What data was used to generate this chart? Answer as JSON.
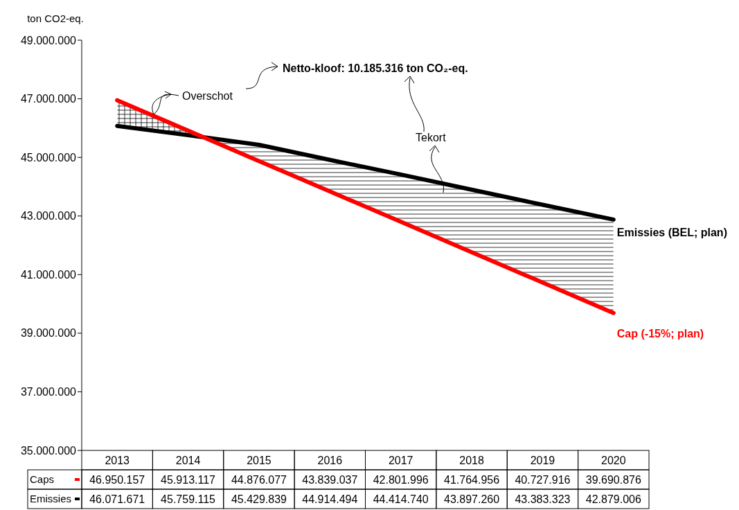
{
  "chart_data": {
    "type": "line",
    "ylabel": "ton CO2-eq.",
    "categories": [
      "2013",
      "2014",
      "2015",
      "2016",
      "2017",
      "2018",
      "2019",
      "2020"
    ],
    "series": [
      {
        "name": "Caps",
        "color": "#ff0000",
        "values": [
          46950157,
          45913117,
          44876077,
          43839037,
          42801996,
          41764956,
          40727916,
          39690876
        ],
        "value_labels": [
          "46.950.157",
          "45.913.117",
          "44.876.077",
          "43.839.037",
          "42.801.996",
          "41.764.956",
          "40.727.916",
          "39.690.876"
        ]
      },
      {
        "name": "Emissies",
        "color": "#000000",
        "values": [
          46071671,
          45759115,
          45429839,
          44914494,
          44414740,
          43897260,
          43383323,
          42879006
        ],
        "value_labels": [
          "46.071.671",
          "45.759.115",
          "45.429.839",
          "44.914.494",
          "44.414.740",
          "43.897.260",
          "43.383.323",
          "42.879.006"
        ]
      }
    ],
    "ylim": [
      35000000,
      49000000
    ],
    "yticks": [
      {
        "value": 35000000,
        "label": "35.000.000"
      },
      {
        "value": 37000000,
        "label": "37.000.000"
      },
      {
        "value": 39000000,
        "label": "39.000.000"
      },
      {
        "value": 41000000,
        "label": "41.000.000"
      },
      {
        "value": 43000000,
        "label": "43.000.000"
      },
      {
        "value": 45000000,
        "label": "45.000.000"
      },
      {
        "value": 47000000,
        "label": "47.000.000"
      },
      {
        "value": 49000000,
        "label": "49.000.000"
      }
    ],
    "annotations": [
      "Overschot",
      "Netto-kloof: 10.185.316 ton CO₂-eq.",
      "Tekort",
      {
        "text": "Emissies (BEL; plan)",
        "x": "2020",
        "y": 42879006
      },
      {
        "text": "Cap (-15%; plan)",
        "x": "2020",
        "y": 39690876
      }
    ],
    "grid": false,
    "legend": "bottom left",
    "marker": "none",
    "line_style": "solid"
  }
}
